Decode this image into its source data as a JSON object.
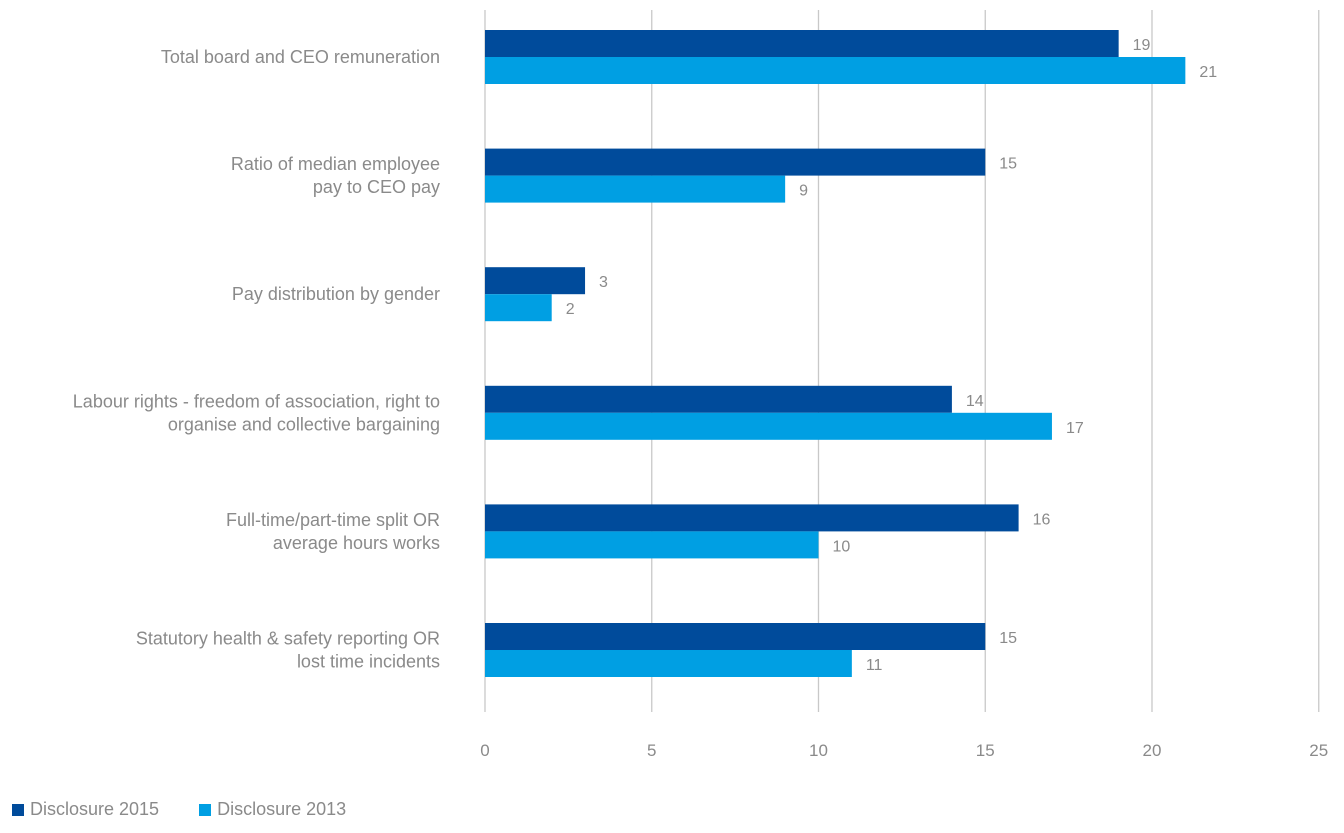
{
  "chart_data": {
    "type": "bar",
    "orientation": "horizontal",
    "categories": [
      [
        "Total board and CEO remuneration"
      ],
      [
        "Ratio of median employee",
        "pay to CEO pay"
      ],
      [
        "Pay distribution by gender"
      ],
      [
        "Labour rights - freedom of association, right to",
        "organise and collective bargaining"
      ],
      [
        "Full-time/part-time split OR",
        "average hours works"
      ],
      [
        "Statutory health & safety reporting OR",
        "lost time incidents"
      ]
    ],
    "series": [
      {
        "name": "Disclosure 2015",
        "color": "#004b9b",
        "values": [
          19,
          15,
          3,
          14,
          16,
          15
        ]
      },
      {
        "name": "Disclosure 2013",
        "color": "#009fe3",
        "values": [
          21,
          9,
          2,
          17,
          10,
          11
        ]
      }
    ],
    "xlim": [
      0,
      25
    ],
    "xticks": [
      "0",
      "5",
      "10",
      "15",
      "20",
      "25"
    ],
    "grid": "vertical",
    "legend": "bottom-left"
  }
}
